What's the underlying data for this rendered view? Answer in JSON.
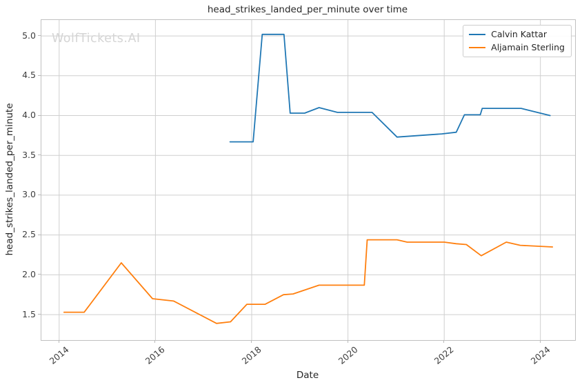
{
  "chart_data": {
    "type": "line",
    "title": "head_strikes_landed_per_minute over time",
    "xlabel": "Date",
    "ylabel": "head_strikes_landed_per_minute",
    "watermark": "WolfTickets.AI",
    "xlim": [
      2013.63,
      2024.72
    ],
    "ylim": [
      1.18,
      5.2
    ],
    "xticks": [
      2014,
      2016,
      2018,
      2020,
      2022,
      2024
    ],
    "yticks": [
      1.5,
      2.0,
      2.5,
      3.0,
      3.5,
      4.0,
      4.5,
      5.0
    ],
    "grid": true,
    "legend_position": "upper-right",
    "grid_color": "#cfcfcf",
    "series": [
      {
        "name": "Calvin Kattar",
        "color": "#1f77b4",
        "x": [
          2017.55,
          2018.03,
          2018.22,
          2018.67,
          2018.8,
          2019.1,
          2019.4,
          2019.78,
          2020.5,
          2021.02,
          2021.95,
          2022.25,
          2022.42,
          2022.75,
          2022.79,
          2023.6,
          2024.2
        ],
        "y": [
          3.67,
          3.67,
          5.02,
          5.02,
          4.03,
          4.03,
          4.1,
          4.04,
          4.04,
          3.73,
          3.77,
          3.79,
          4.01,
          4.01,
          4.09,
          4.09,
          4.0
        ]
      },
      {
        "name": "Aljamain Sterling",
        "color": "#ff7f0e",
        "x": [
          2014.1,
          2014.52,
          2015.29,
          2015.94,
          2016.38,
          2017.27,
          2017.56,
          2017.9,
          2018.28,
          2018.66,
          2018.86,
          2019.4,
          2020.34,
          2020.4,
          2021.02,
          2021.23,
          2022.0,
          2022.25,
          2022.46,
          2022.77,
          2023.29,
          2023.58,
          2024.25
        ],
        "y": [
          1.53,
          1.53,
          2.15,
          1.7,
          1.67,
          1.39,
          1.41,
          1.63,
          1.63,
          1.75,
          1.76,
          1.87,
          1.87,
          2.44,
          2.44,
          2.41,
          2.41,
          2.39,
          2.38,
          2.24,
          2.41,
          2.37,
          2.35
        ]
      }
    ]
  }
}
